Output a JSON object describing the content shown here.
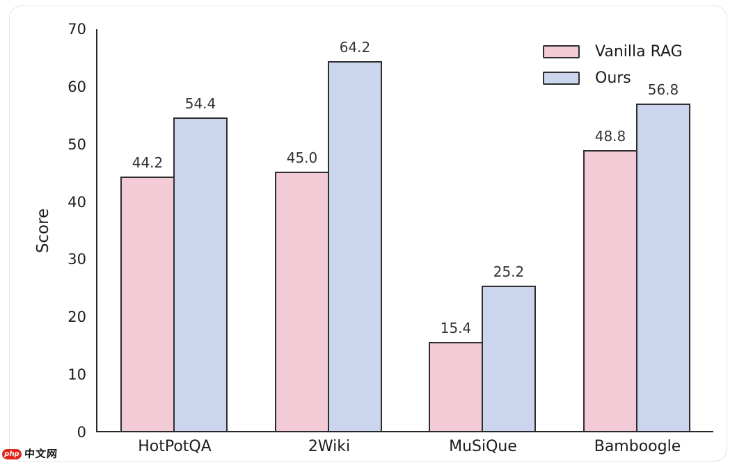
{
  "watermark": {
    "logo_text": "php",
    "site_text": "中文网",
    "logo_color": "#e0251b"
  },
  "chart_data": {
    "type": "bar",
    "title": "",
    "xlabel": "",
    "ylabel": "Score",
    "categories": [
      "HotPotQA",
      "2Wiki",
      "MuSiQue",
      "Bamboogle"
    ],
    "series": [
      {
        "name": "Vanilla RAG",
        "color": "#f2cbd6",
        "values": [
          44.2,
          45.0,
          15.4,
          48.8
        ]
      },
      {
        "name": "Ours",
        "color": "#ccd5ee",
        "values": [
          54.4,
          64.2,
          25.2,
          56.8
        ]
      }
    ],
    "ylim": [
      0,
      70
    ],
    "yticks": [
      0,
      10,
      20,
      30,
      40,
      50,
      60,
      70
    ],
    "bar_edge_color": "#2e2e2e",
    "axis_color": "#262626",
    "grid": false,
    "legend_position": "upper right",
    "value_label_decimals": 1
  }
}
